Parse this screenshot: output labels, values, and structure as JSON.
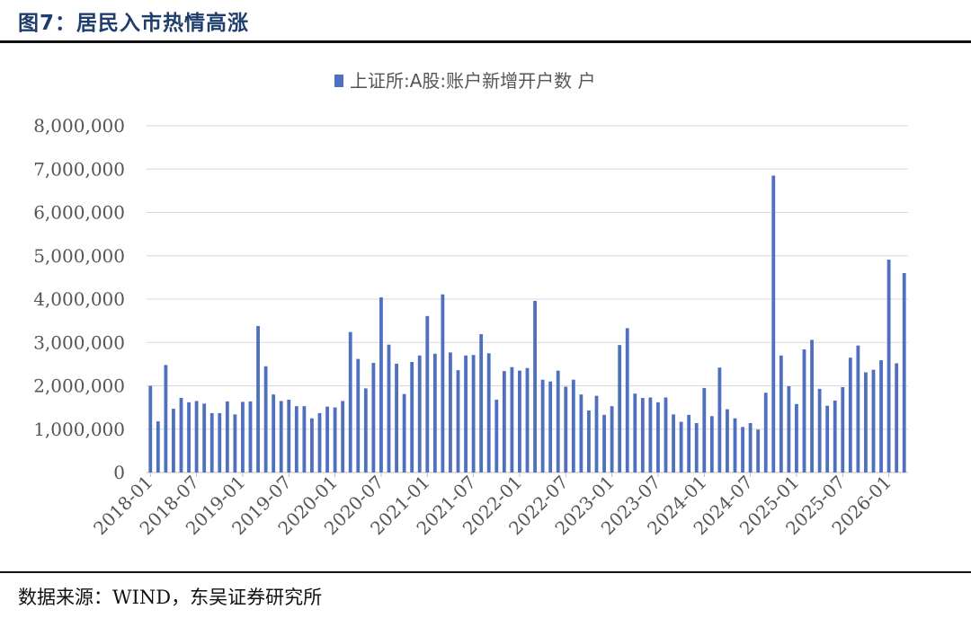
{
  "header": {
    "title": "图7：居民入市热情高涨"
  },
  "footer": {
    "source": "数据来源：WIND，东吴证券研究所"
  },
  "colors": {
    "bar": "#4f6fbf",
    "grid": "#d9d9d9",
    "rule": "#111111",
    "title": "#1f3e6e"
  },
  "chart_data": {
    "type": "bar",
    "legend_position": "top-center",
    "grid": true,
    "series": [
      {
        "name": "上证所:A股:账户新增开户数 户",
        "start": "2018-01",
        "values": [
          2000000,
          1180000,
          2480000,
          1470000,
          1720000,
          1620000,
          1650000,
          1590000,
          1370000,
          1370000,
          1640000,
          1340000,
          1630000,
          1640000,
          3380000,
          2450000,
          1800000,
          1650000,
          1680000,
          1530000,
          1530000,
          1250000,
          1370000,
          1520000,
          1500000,
          1650000,
          3240000,
          2620000,
          1940000,
          2530000,
          4040000,
          2950000,
          2510000,
          1810000,
          2550000,
          2700000,
          3610000,
          2740000,
          4110000,
          2770000,
          2360000,
          2700000,
          2710000,
          3190000,
          2750000,
          1680000,
          2340000,
          2430000,
          2350000,
          2410000,
          3960000,
          2140000,
          2100000,
          2350000,
          1980000,
          2140000,
          1800000,
          1430000,
          1770000,
          1330000,
          1530000,
          2940000,
          3330000,
          1820000,
          1720000,
          1730000,
          1620000,
          1730000,
          1340000,
          1170000,
          1330000,
          1140000,
          1950000,
          1300000,
          2420000,
          1460000,
          1250000,
          1050000,
          1140000,
          990000,
          1840000,
          6850000,
          2700000,
          1990000,
          1580000,
          2840000,
          3060000,
          1930000,
          1540000,
          1660000,
          1970000,
          2650000,
          2930000,
          2310000,
          2370000,
          2590000,
          4910000,
          2520000,
          4600000
        ]
      }
    ],
    "x_tick_labels": [
      "2018-01",
      "2018-07",
      "2019-01",
      "2019-07",
      "2020-01",
      "2020-07",
      "2021-01",
      "2021-07",
      "2022-01",
      "2022-07",
      "2023-01",
      "2023-07",
      "2024-01",
      "2024-07",
      "2025-01",
      "2025-07",
      "2026-01"
    ],
    "y_tick_labels": [
      "0",
      "1,000,000",
      "2,000,000",
      "3,000,000",
      "4,000,000",
      "5,000,000",
      "6,000,000",
      "7,000,000",
      "8,000,000"
    ],
    "ylim": [
      0,
      8000000
    ],
    "xlabel": "",
    "ylabel": ""
  }
}
